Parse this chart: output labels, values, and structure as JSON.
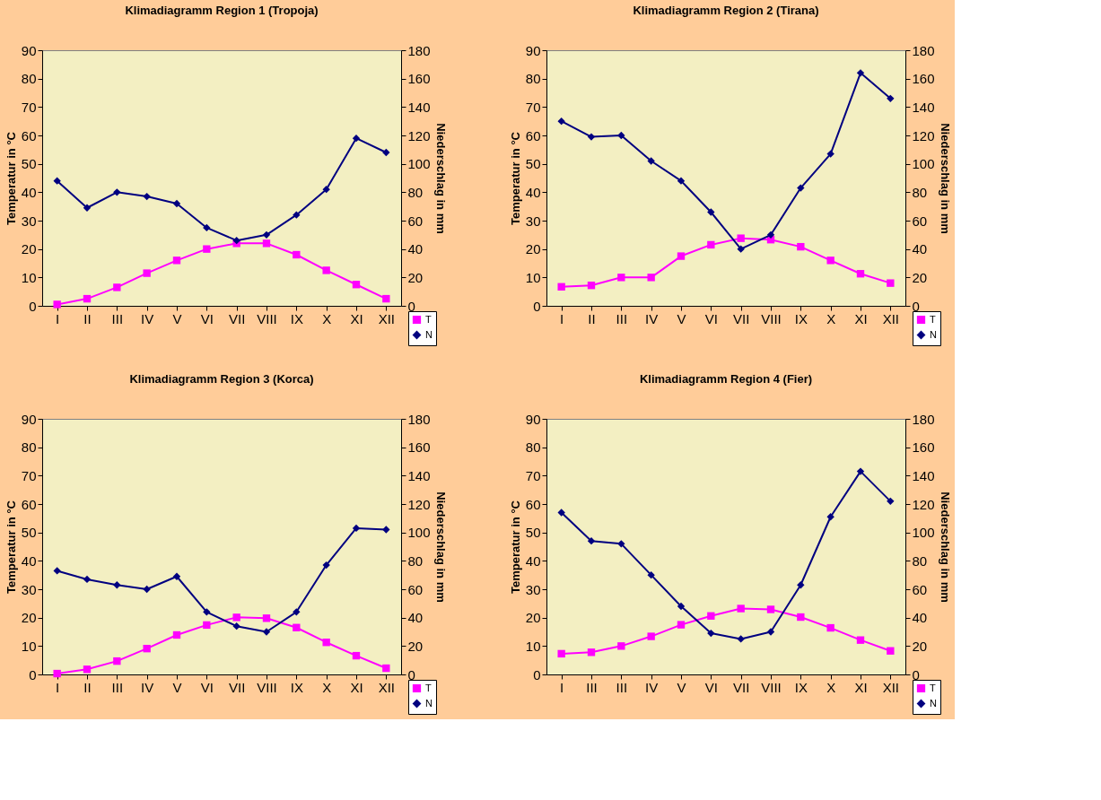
{
  "chart_data": [
    {
      "type": "line",
      "title": "Klimadiagramm Region 1 (Tropoja)",
      "xlabel": null,
      "ylabel": "Temperatur in °C",
      "y2label": "Niederschlag in mm",
      "categories": [
        "I",
        "II",
        "III",
        "IV",
        "V",
        "VI",
        "VII",
        "VIII",
        "IX",
        "X",
        "XI",
        "XII"
      ],
      "ylim": [
        0,
        90
      ],
      "yticks": [
        0,
        10,
        20,
        30,
        40,
        50,
        60,
        70,
        80,
        90
      ],
      "y2lim": [
        0,
        180
      ],
      "y2ticks": [
        0,
        20,
        40,
        60,
        80,
        100,
        120,
        140,
        160,
        180
      ],
      "legend": "bottom right",
      "grid": false,
      "series": [
        {
          "name": "T",
          "color": "#ff00ff",
          "marker": "square",
          "values": [
            0.5,
            2.5,
            6.5,
            11.5,
            16,
            20,
            22,
            22,
            18,
            12.5,
            7.5,
            2.5
          ]
        },
        {
          "name": "N",
          "color": "#000080",
          "marker": "diamond",
          "axis": "y2",
          "values": [
            88,
            69,
            80,
            77,
            72,
            55,
            46,
            50,
            64,
            82,
            118,
            108
          ]
        }
      ]
    },
    {
      "type": "line",
      "title": "Klimadiagramm Region 2 (Tirana)",
      "ylabel": "Temperatur in °C",
      "y2label": "Niederschlag in mm",
      "categories": [
        "I",
        "II",
        "III",
        "IV",
        "V",
        "VI",
        "VII",
        "VIII",
        "IX",
        "X",
        "XI",
        "XII"
      ],
      "ylim": [
        0,
        90
      ],
      "yticks": [
        0,
        10,
        20,
        30,
        40,
        50,
        60,
        70,
        80,
        90
      ],
      "y2lim": [
        0,
        180
      ],
      "y2ticks": [
        0,
        20,
        40,
        60,
        80,
        100,
        120,
        140,
        160,
        180
      ],
      "legend": "bottom right",
      "grid": false,
      "series": [
        {
          "name": "T",
          "color": "#ff00ff",
          "marker": "square",
          "values": [
            6.7,
            7.2,
            10,
            10,
            17.5,
            21.5,
            23.8,
            23.3,
            20.8,
            16,
            11.3,
            8
          ]
        },
        {
          "name": "N",
          "color": "#000080",
          "marker": "diamond",
          "axis": "y2",
          "values": [
            130,
            119,
            120,
            102,
            88,
            66,
            40,
            50,
            83,
            107,
            164,
            146
          ]
        }
      ]
    },
    {
      "type": "line",
      "title": "Klimadiagramm Region 3 (Korca)",
      "ylabel": "Temperatur in °C",
      "y2label": "Niederschlag in mm",
      "categories": [
        "I",
        "II",
        "III",
        "IV",
        "V",
        "VI",
        "VII",
        "VIII",
        "IX",
        "X",
        "XI",
        "XII"
      ],
      "ylim": [
        0,
        90
      ],
      "yticks": [
        0,
        10,
        20,
        30,
        40,
        50,
        60,
        70,
        80,
        90
      ],
      "y2lim": [
        0,
        180
      ],
      "y2ticks": [
        0,
        20,
        40,
        60,
        80,
        100,
        120,
        140,
        160,
        180
      ],
      "legend": "bottom right",
      "grid": false,
      "series": [
        {
          "name": "T",
          "color": "#ff00ff",
          "marker": "square",
          "values": [
            0.3,
            1.8,
            4.7,
            9.1,
            13.9,
            17.4,
            20.1,
            19.8,
            16.5,
            11.3,
            6.6,
            2.2
          ]
        },
        {
          "name": "N",
          "color": "#000080",
          "marker": "diamond",
          "axis": "y2",
          "values": [
            73,
            67,
            63,
            60,
            69,
            44,
            34,
            30,
            44,
            77,
            103,
            102
          ]
        }
      ]
    },
    {
      "type": "line",
      "title": "Klimadiagramm Region 4 (Fier)",
      "ylabel": "Temperatur in °C",
      "y2label": "Niederschlag in mm",
      "categories": [
        "I",
        "III",
        "III",
        "IV",
        "V",
        "VI",
        "VII",
        "VIII",
        "IX",
        "X",
        "XI",
        "XII"
      ],
      "ylim": [
        0,
        90
      ],
      "yticks": [
        0,
        10,
        20,
        30,
        40,
        50,
        60,
        70,
        80,
        90
      ],
      "y2lim": [
        0,
        180
      ],
      "y2ticks": [
        0,
        20,
        40,
        60,
        80,
        100,
        120,
        140,
        160,
        180
      ],
      "legend": "bottom right",
      "grid": false,
      "series": [
        {
          "name": "T",
          "color": "#ff00ff",
          "marker": "square",
          "values": [
            7.3,
            7.8,
            10,
            13.4,
            17.5,
            20.6,
            23.2,
            22.9,
            20.2,
            16.4,
            12.1,
            8.3
          ]
        },
        {
          "name": "N",
          "color": "#000080",
          "marker": "diamond",
          "axis": "y2",
          "values": [
            114,
            94,
            92,
            70,
            48,
            29,
            25,
            30,
            63,
            111,
            143,
            122
          ]
        }
      ]
    }
  ]
}
